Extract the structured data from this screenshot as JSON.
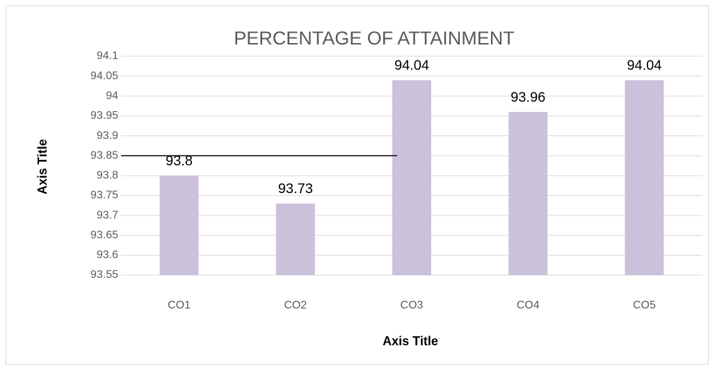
{
  "chart_data": {
    "type": "bar",
    "title": "PERCENTAGE OF ATTAINMENT",
    "x_label": "Axis Title",
    "y_label": "Axis Title",
    "categories": [
      "CO1",
      "CO2",
      "CO3",
      "CO4",
      "CO5"
    ],
    "values": [
      93.8,
      93.73,
      94.04,
      93.96,
      94.04
    ],
    "color": "#ccc1da",
    "ylim": [
      93.55,
      94.1
    ],
    "yticks": [
      93.55,
      93.6,
      93.65,
      93.7,
      93.75,
      93.8,
      93.85,
      93.9,
      93.95,
      94,
      94.05,
      94.1
    ],
    "grid": true,
    "reference_line": 93.85
  }
}
